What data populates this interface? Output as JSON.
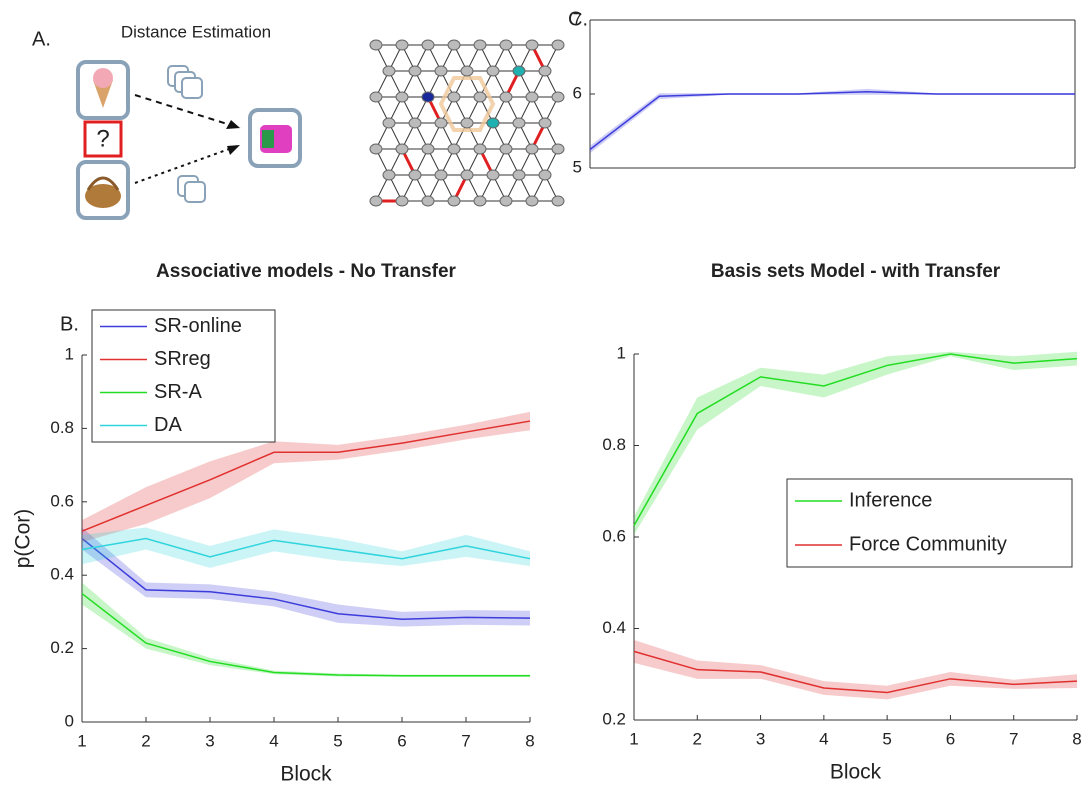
{
  "panel_a": {
    "label": "A.",
    "title": "Distance Estimation",
    "question": "?"
  },
  "chart_data": [
    {
      "type": "line",
      "panel_label": "C.",
      "x": [
        1,
        2,
        3,
        4,
        5,
        6,
        7,
        8
      ],
      "xlim": [
        1,
        8
      ],
      "ylim": [
        5,
        7
      ],
      "yticks": [
        5,
        6,
        7
      ],
      "box": true,
      "series": [
        {
          "color": "#3d3ddb",
          "values": [
            5.25,
            5.97,
            6.0,
            6.0,
            6.03,
            6.0,
            6.0,
            6.0
          ],
          "errors": [
            0.05,
            0.04,
            0.01,
            0.01,
            0.04,
            0.01,
            0.01,
            0.01
          ]
        }
      ]
    },
    {
      "type": "line",
      "panel_label": "B.",
      "title": "Associative models - No Transfer",
      "xlabel": "Block",
      "ylabel": "p(Cor)",
      "x": [
        1,
        2,
        3,
        4,
        5,
        6,
        7,
        8
      ],
      "xlim": [
        1,
        8
      ],
      "xticks": [
        1,
        2,
        3,
        4,
        5,
        6,
        7,
        8
      ],
      "ylim": [
        0,
        1
      ],
      "yticks": [
        0,
        0.2,
        0.4,
        0.6,
        0.8,
        1
      ],
      "legend": "upper left",
      "series": [
        {
          "name": "SR-online",
          "color": "#3d3ddb",
          "values": [
            0.5,
            0.36,
            0.355,
            0.335,
            0.295,
            0.28,
            0.285,
            0.283
          ],
          "errors": [
            0.03,
            0.02,
            0.02,
            0.02,
            0.025,
            0.02,
            0.02,
            0.02
          ]
        },
        {
          "name": "SRreg",
          "color": "#e0302f",
          "values": [
            0.52,
            0.59,
            0.66,
            0.735,
            0.735,
            0.76,
            0.79,
            0.82
          ],
          "errors": [
            0.03,
            0.05,
            0.05,
            0.03,
            0.02,
            0.02,
            0.02,
            0.025
          ]
        },
        {
          "name": "SR-A",
          "color": "#22dd22",
          "values": [
            0.35,
            0.215,
            0.165,
            0.135,
            0.128,
            0.126,
            0.126,
            0.126
          ],
          "errors": [
            0.03,
            0.015,
            0.01,
            0.005,
            0.004,
            0.003,
            0.003,
            0.003
          ]
        },
        {
          "name": "DA",
          "color": "#2fd4dd",
          "values": [
            0.47,
            0.5,
            0.45,
            0.495,
            0.47,
            0.445,
            0.48,
            0.445
          ],
          "errors": [
            0.04,
            0.03,
            0.03,
            0.03,
            0.03,
            0.02,
            0.03,
            0.02
          ]
        }
      ]
    },
    {
      "type": "line",
      "title": "Basis sets Model - with Transfer",
      "xlabel": "Block",
      "x": [
        1,
        2,
        3,
        4,
        5,
        6,
        7,
        8
      ],
      "xlim": [
        1,
        8
      ],
      "xticks": [
        1,
        2,
        3,
        4,
        5,
        6,
        7,
        8
      ],
      "ylim": [
        0.2,
        1
      ],
      "yticks": [
        0.2,
        0.4,
        0.6,
        0.8,
        1
      ],
      "legend": "center right",
      "series": [
        {
          "name": "Inference",
          "color": "#22dd22",
          "values": [
            0.625,
            0.87,
            0.95,
            0.93,
            0.975,
            1.0,
            0.98,
            0.99
          ],
          "errors": [
            0.02,
            0.035,
            0.02,
            0.025,
            0.02,
            0.005,
            0.015,
            0.015
          ]
        },
        {
          "name": "Force Community",
          "color": "#e0302f",
          "values": [
            0.35,
            0.31,
            0.305,
            0.27,
            0.26,
            0.29,
            0.278,
            0.285
          ],
          "errors": [
            0.025,
            0.02,
            0.015,
            0.015,
            0.015,
            0.015,
            0.01,
            0.015
          ]
        }
      ]
    }
  ]
}
